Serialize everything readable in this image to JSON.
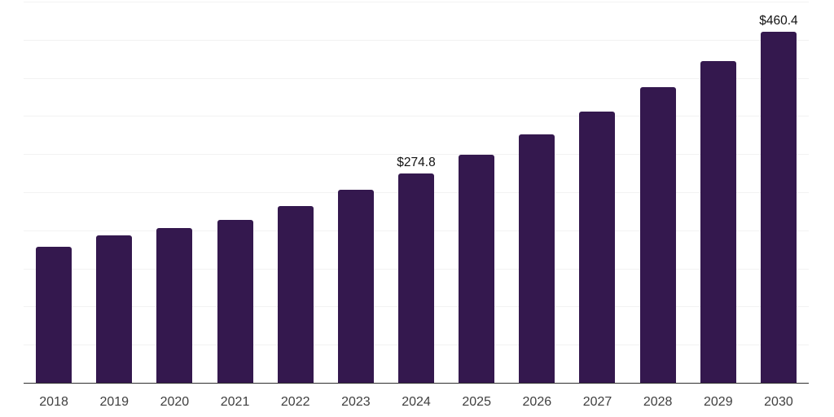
{
  "chart_data": {
    "type": "bar",
    "title": "",
    "xlabel": "",
    "ylabel": "",
    "categories": [
      "2018",
      "2019",
      "2020",
      "2021",
      "2022",
      "2023",
      "2024",
      "2025",
      "2026",
      "2027",
      "2028",
      "2029",
      "2030"
    ],
    "values": [
      178.9,
      193.9,
      202.8,
      213.5,
      232.0,
      252.8,
      274.8,
      299.5,
      326.4,
      355.7,
      387.6,
      422.4,
      460.4
    ],
    "value_labels": {
      "2024": "$274.8",
      "2030": "$460.4"
    },
    "ylim": [
      0,
      500
    ],
    "gridline_step": 50,
    "grid": true,
    "legend_position": "none",
    "colors": {
      "bar": "#34184e",
      "gridline": "#f2f2f2",
      "axis_line": "#2f2f2f",
      "tick_label": "#404040",
      "value_label": "#111111",
      "background": "#ffffff"
    }
  }
}
